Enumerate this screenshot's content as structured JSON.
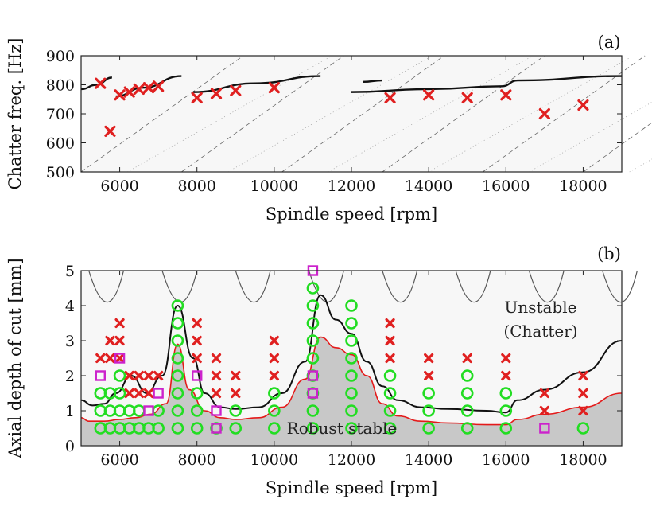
{
  "chart_data": [
    {
      "type": "scatter",
      "panel_label": "(a)",
      "xlabel": "Spindle speed [rpm]",
      "ylabel": "Chatter freq. [Hz]",
      "xlim": [
        5000,
        19000
      ],
      "ylim": [
        500,
        900
      ],
      "xticks": [
        "6000",
        "8000",
        "10000",
        "12000",
        "14000",
        "16000",
        "18000"
      ],
      "yticks": [
        "500",
        "600",
        "700",
        "800",
        "900"
      ],
      "grid": false,
      "series": [
        {
          "marker": "cross",
          "color": "#e02020",
          "x": [
            5500,
            5750,
            6000,
            6250,
            6500,
            6750,
            7000,
            8000,
            8500,
            9000,
            10000,
            13000,
            14000,
            15000,
            16000,
            17000,
            18000
          ],
          "y": [
            805,
            640,
            765,
            775,
            785,
            790,
            795,
            755,
            770,
            780,
            790,
            755,
            765,
            755,
            765,
            700,
            730
          ]
        }
      ],
      "predicted_branches": [
        {
          "x": [
            5000,
            5400,
            5800
          ],
          "y": [
            785,
            800,
            825
          ]
        },
        {
          "x": [
            5900,
            6600,
            7600
          ],
          "y": [
            760,
            790,
            830
          ]
        },
        {
          "x": [
            7900,
            9500,
            11200
          ],
          "y": [
            775,
            805,
            830
          ]
        },
        {
          "x": [
            12300,
            12800
          ],
          "y": [
            810,
            815
          ]
        },
        {
          "x": [
            12000,
            14000,
            15900,
            16300,
            19000
          ],
          "y": [
            775,
            785,
            795,
            815,
            830
          ]
        }
      ]
    },
    {
      "type": "scatter",
      "panel_label": "(b)",
      "xlabel": "Spindle speed [rpm]",
      "ylabel": "Axial depth of cut [mm]",
      "xlim": [
        5000,
        19000
      ],
      "ylim": [
        0,
        5
      ],
      "xticks": [
        "6000",
        "8000",
        "10000",
        "12000",
        "14000",
        "16000",
        "18000"
      ],
      "yticks": [
        "0",
        "1",
        "2",
        "3",
        "4",
        "5"
      ],
      "grid": false,
      "region_labels": [
        "Unstable",
        "(Chatter)",
        "Robust stable"
      ],
      "series": [
        {
          "marker": "circle",
          "color": "#22dd22",
          "points": [
            [
              5500,
              0.5
            ],
            [
              5500,
              1
            ],
            [
              5500,
              1.5
            ],
            [
              5750,
              0.5
            ],
            [
              5750,
              1
            ],
            [
              5750,
              1.5
            ],
            [
              6000,
              0.5
            ],
            [
              6000,
              1
            ],
            [
              6000,
              1.5
            ],
            [
              6000,
              2
            ],
            [
              6250,
              0.5
            ],
            [
              6250,
              1
            ],
            [
              6500,
              0.5
            ],
            [
              6500,
              1
            ],
            [
              6750,
              0.5
            ],
            [
              7000,
              0.5
            ],
            [
              7000,
              1
            ],
            [
              7500,
              0.5
            ],
            [
              7500,
              1
            ],
            [
              7500,
              1.5
            ],
            [
              7500,
              2
            ],
            [
              7500,
              2.5
            ],
            [
              7500,
              3
            ],
            [
              7500,
              3.5
            ],
            [
              7500,
              4
            ],
            [
              8000,
              0.5
            ],
            [
              8000,
              1
            ],
            [
              8000,
              1.5
            ],
            [
              8500,
              0.5
            ],
            [
              9000,
              0.5
            ],
            [
              9000,
              1
            ],
            [
              10000,
              0.5
            ],
            [
              10000,
              1
            ],
            [
              10000,
              1.5
            ],
            [
              11000,
              0.5
            ],
            [
              11000,
              1
            ],
            [
              11000,
              1.5
            ],
            [
              11000,
              2
            ],
            [
              11000,
              2.5
            ],
            [
              11000,
              3
            ],
            [
              11000,
              3.5
            ],
            [
              11000,
              4
            ],
            [
              11000,
              4.5
            ],
            [
              12000,
              0.5
            ],
            [
              12000,
              1
            ],
            [
              12000,
              1.5
            ],
            [
              12000,
              2
            ],
            [
              12000,
              2.5
            ],
            [
              12000,
              3
            ],
            [
              12000,
              3.5
            ],
            [
              12000,
              4
            ],
            [
              13000,
              0.5
            ],
            [
              13000,
              1
            ],
            [
              13000,
              1.5
            ],
            [
              13000,
              2
            ],
            [
              14000,
              0.5
            ],
            [
              14000,
              1
            ],
            [
              14000,
              1.5
            ],
            [
              15000,
              0.5
            ],
            [
              15000,
              1
            ],
            [
              15000,
              1.5
            ],
            [
              15000,
              2
            ],
            [
              16000,
              0.5
            ],
            [
              16000,
              1
            ],
            [
              16000,
              1.5
            ],
            [
              18000,
              0.5
            ]
          ]
        },
        {
          "marker": "cross",
          "color": "#e02020",
          "points": [
            [
              5500,
              2.5
            ],
            [
              5750,
              2.5
            ],
            [
              5750,
              3
            ],
            [
              6000,
              2.5
            ],
            [
              6000,
              3
            ],
            [
              6000,
              3.5
            ],
            [
              6250,
              1.5
            ],
            [
              6250,
              2
            ],
            [
              6500,
              1.5
            ],
            [
              6500,
              2
            ],
            [
              6750,
              1.5
            ],
            [
              6750,
              2
            ],
            [
              7000,
              2
            ],
            [
              8000,
              2.5
            ],
            [
              8000,
              3
            ],
            [
              8000,
              3.5
            ],
            [
              8500,
              1.5
            ],
            [
              8500,
              2
            ],
            [
              8500,
              2.5
            ],
            [
              9000,
              1.5
            ],
            [
              9000,
              2
            ],
            [
              10000,
              2
            ],
            [
              10000,
              2.5
            ],
            [
              10000,
              3
            ],
            [
              13000,
              2.5
            ],
            [
              13000,
              3
            ],
            [
              13000,
              3.5
            ],
            [
              14000,
              2
            ],
            [
              14000,
              2.5
            ],
            [
              15000,
              2.5
            ],
            [
              16000,
              2
            ],
            [
              16000,
              2.5
            ],
            [
              17000,
              1
            ],
            [
              17000,
              1.5
            ],
            [
              18000,
              1
            ],
            [
              18000,
              1.5
            ],
            [
              18000,
              2
            ]
          ]
        },
        {
          "marker": "square",
          "color": "#cc22cc",
          "points": [
            [
              5500,
              2
            ],
            [
              6000,
              2.5
            ],
            [
              6750,
              1
            ],
            [
              7000,
              1.5
            ],
            [
              8000,
              2
            ],
            [
              8500,
              0.5
            ],
            [
              8500,
              1
            ],
            [
              11000,
              1.5
            ],
            [
              11000,
              2
            ],
            [
              11000,
              5
            ],
            [
              17000,
              0.5
            ]
          ]
        }
      ],
      "robust_boundary": {
        "x": [
          5000,
          5200,
          5600,
          6000,
          6400,
          6800,
          7200,
          7500,
          7800,
          8200,
          8600,
          9000,
          9600,
          10200,
          10800,
          11200,
          11600,
          12000,
          12400,
          12800,
          13200,
          13800,
          14500,
          15500,
          16000,
          16300,
          17000,
          18000,
          19000
        ],
        "y": [
          0.8,
          0.7,
          0.7,
          0.75,
          0.8,
          0.9,
          1.2,
          2.9,
          1.6,
          1.0,
          0.8,
          0.75,
          0.8,
          1.1,
          1.9,
          3.1,
          2.8,
          2.6,
          2.0,
          1.2,
          0.85,
          0.7,
          0.65,
          0.6,
          0.6,
          0.75,
          0.9,
          1.1,
          1.5
        ]
      },
      "stability_lobe": {
        "x": [
          5000,
          5300,
          5600,
          5900,
          6300,
          6700,
          7100,
          7500,
          7900,
          8200,
          8600,
          9000,
          9600,
          10200,
          10800,
          11200,
          11600,
          12000,
          12400,
          12800,
          13200,
          13800,
          14500,
          15500,
          16000,
          16300,
          17000,
          18000,
          19000
        ],
        "y": [
          1.3,
          1.15,
          1.2,
          1.5,
          2.0,
          1.5,
          2.0,
          4.0,
          2.5,
          1.5,
          1.1,
          1.05,
          1.1,
          1.5,
          2.4,
          4.3,
          3.6,
          3.2,
          2.4,
          1.7,
          1.3,
          1.1,
          1.05,
          1.0,
          0.95,
          1.3,
          1.6,
          2.1,
          3.0
        ]
      }
    }
  ]
}
